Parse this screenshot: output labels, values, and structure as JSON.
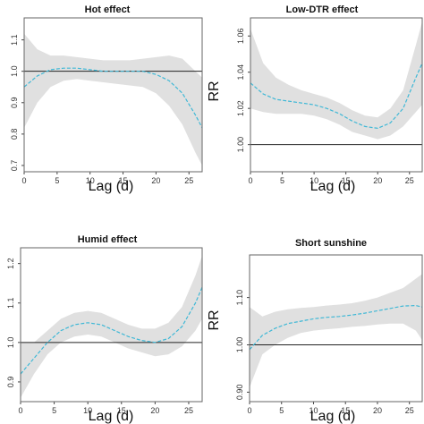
{
  "chart_data": [
    {
      "type": "line",
      "title": "Hot effect",
      "xlabel": "Lag (d)",
      "ylabel": "",
      "xlim": [
        0,
        27
      ],
      "ylim": [
        0.68,
        1.17
      ],
      "xticks": [
        "0",
        "5",
        "10",
        "15",
        "20",
        "25"
      ],
      "yticks": [
        "0.7",
        "0.8",
        "0.9",
        "1.0",
        "1.1"
      ],
      "reference_line": 1.0,
      "series": [
        {
          "x": [
            0,
            2,
            4,
            6,
            8,
            10,
            12,
            14,
            16,
            18,
            20,
            22,
            24,
            26,
            27
          ],
          "values": [
            0.95,
            0.985,
            1.005,
            1.01,
            1.01,
            1.005,
            1.0,
            1.0,
            1.0,
            1.0,
            0.99,
            0.97,
            0.93,
            0.86,
            0.82
          ],
          "lower": [
            0.82,
            0.9,
            0.95,
            0.97,
            0.975,
            0.97,
            0.965,
            0.96,
            0.955,
            0.95,
            0.93,
            0.89,
            0.83,
            0.74,
            0.7
          ],
          "upper": [
            1.12,
            1.07,
            1.05,
            1.05,
            1.045,
            1.04,
            1.035,
            1.035,
            1.035,
            1.04,
            1.045,
            1.05,
            1.04,
            1.0,
            0.98
          ]
        }
      ],
      "colors": {
        "line": "#3fb8d6",
        "band": "#e0e0e0",
        "reference": "#222222"
      }
    },
    {
      "type": "line",
      "title": "Low-DTR effect",
      "xlabel": "Lag (d)",
      "ylabel": "RR",
      "xlim": [
        0,
        27
      ],
      "ylim": [
        0.985,
        1.07
      ],
      "xticks": [
        "0",
        "5",
        "10",
        "15",
        "20",
        "25"
      ],
      "yticks": [
        "1.00",
        "1.02",
        "1.04",
        "1.06"
      ],
      "reference_line": 1.0,
      "series": [
        {
          "x": [
            0,
            2,
            4,
            6,
            8,
            10,
            12,
            14,
            16,
            18,
            20,
            22,
            24,
            26,
            27
          ],
          "values": [
            1.034,
            1.028,
            1.025,
            1.024,
            1.023,
            1.022,
            1.02,
            1.017,
            1.013,
            1.01,
            1.009,
            1.012,
            1.02,
            1.037,
            1.045
          ],
          "lower": [
            1.02,
            1.018,
            1.017,
            1.017,
            1.017,
            1.016,
            1.014,
            1.011,
            1.007,
            1.005,
            1.003,
            1.005,
            1.01,
            1.018,
            1.022
          ],
          "upper": [
            1.064,
            1.045,
            1.037,
            1.033,
            1.03,
            1.028,
            1.026,
            1.023,
            1.019,
            1.016,
            1.015,
            1.02,
            1.03,
            1.055,
            1.068
          ]
        }
      ],
      "colors": {
        "line": "#3fb8d6",
        "band": "#e0e0e0",
        "reference": "#222222"
      }
    },
    {
      "type": "line",
      "title": "Humid effect",
      "xlabel": "Lag (d)",
      "ylabel": "",
      "xlim": [
        0,
        27
      ],
      "ylim": [
        0.85,
        1.24
      ],
      "xticks": [
        "0",
        "5",
        "10",
        "15",
        "20",
        "25"
      ],
      "yticks": [
        "0.9",
        "1.0",
        "1.1",
        "1.2"
      ],
      "reference_line": 1.0,
      "series": [
        {
          "x": [
            0,
            2,
            4,
            6,
            8,
            10,
            12,
            14,
            16,
            18,
            20,
            22,
            24,
            26,
            27
          ],
          "values": [
            0.92,
            0.96,
            1.0,
            1.03,
            1.045,
            1.05,
            1.045,
            1.03,
            1.015,
            1.005,
            1.0,
            1.01,
            1.04,
            1.1,
            1.14
          ],
          "lower": [
            0.86,
            0.92,
            0.97,
            1.0,
            1.015,
            1.02,
            1.015,
            1.0,
            0.985,
            0.975,
            0.965,
            0.97,
            0.99,
            1.03,
            1.06
          ],
          "upper": [
            1.0,
            1.0,
            1.03,
            1.06,
            1.075,
            1.08,
            1.075,
            1.06,
            1.045,
            1.035,
            1.035,
            1.05,
            1.09,
            1.17,
            1.22
          ]
        }
      ],
      "colors": {
        "line": "#3fb8d6",
        "band": "#e0e0e0",
        "reference": "#222222"
      }
    },
    {
      "type": "line",
      "title": "Short sunshine",
      "xlabel": "Lag (d)",
      "ylabel": "RR",
      "xlim": [
        0,
        27
      ],
      "ylim": [
        0.88,
        1.19
      ],
      "xticks": [
        "0",
        "5",
        "10",
        "15",
        "20",
        "25"
      ],
      "yticks": [
        "0.90",
        "1.00",
        "1.10"
      ],
      "reference_line": 1.0,
      "series": [
        {
          "x": [
            0,
            2,
            4,
            6,
            8,
            10,
            12,
            14,
            16,
            18,
            20,
            22,
            24,
            26,
            27
          ],
          "values": [
            0.99,
            1.02,
            1.035,
            1.045,
            1.05,
            1.055,
            1.058,
            1.06,
            1.063,
            1.067,
            1.072,
            1.077,
            1.082,
            1.083,
            1.08
          ],
          "lower": [
            0.91,
            0.98,
            1.0,
            1.015,
            1.025,
            1.03,
            1.033,
            1.035,
            1.038,
            1.04,
            1.043,
            1.045,
            1.045,
            1.03,
            1.01
          ],
          "upper": [
            1.08,
            1.06,
            1.07,
            1.075,
            1.078,
            1.08,
            1.083,
            1.085,
            1.088,
            1.093,
            1.1,
            1.11,
            1.12,
            1.14,
            1.15
          ]
        }
      ],
      "colors": {
        "line": "#3fb8d6",
        "band": "#e0e0e0",
        "reference": "#222222"
      }
    }
  ]
}
